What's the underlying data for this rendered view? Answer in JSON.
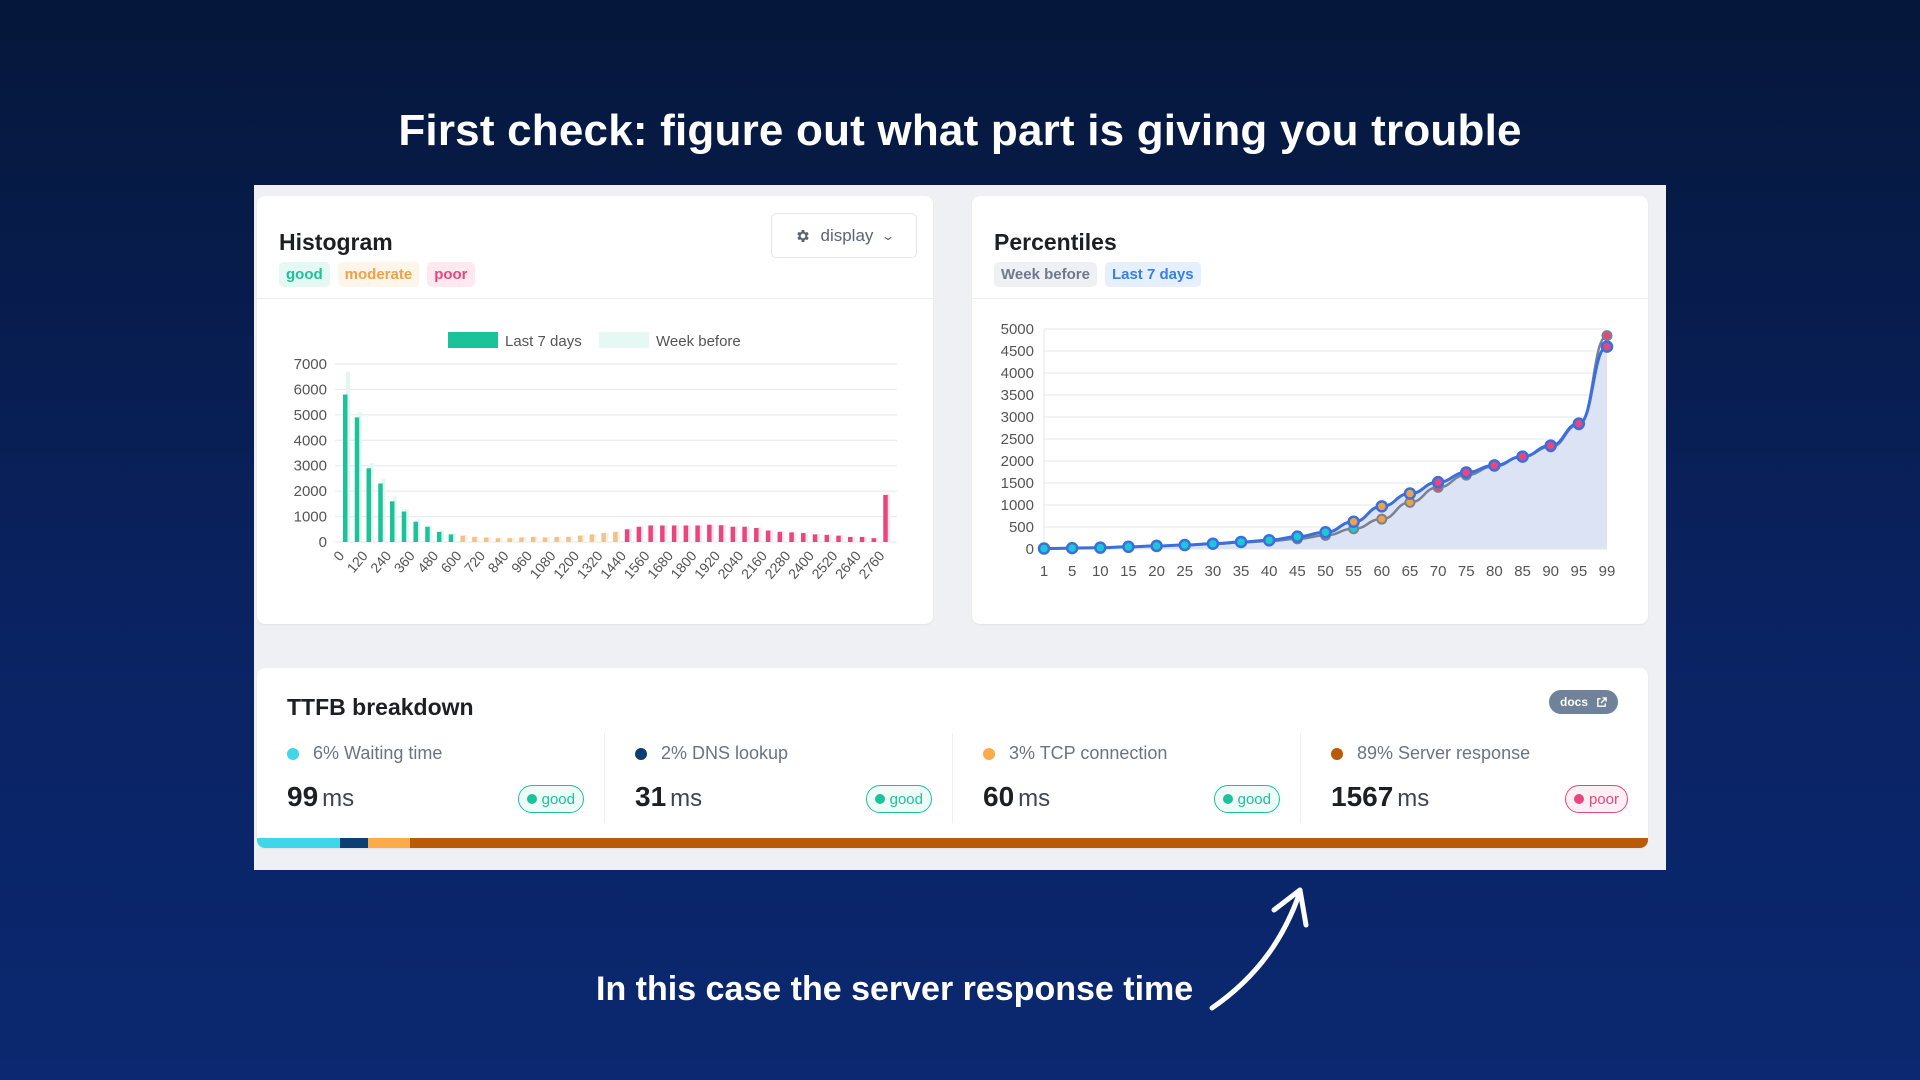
{
  "headline": "First check: figure out what part is giving you trouble",
  "caption": "In this case the server response time",
  "histogram": {
    "title": "Histogram",
    "pills": [
      "good",
      "moderate",
      "poor"
    ],
    "display_button": "display",
    "icons": {
      "display": "gear-icon",
      "dropdown": "chevron-down-icon"
    }
  },
  "percentiles": {
    "title": "Percentiles",
    "pills": [
      "Week before",
      "Last 7 days"
    ]
  },
  "ttfb": {
    "title": "TTFB breakdown",
    "docs_label": "docs",
    "docs_icon": "external-link-icon",
    "items": [
      {
        "label": "6% Waiting time",
        "value": "99",
        "unit": "ms",
        "status": "good",
        "color": "#3fd6ea",
        "share": 6
      },
      {
        "label": "2% DNS lookup",
        "value": "31",
        "unit": "ms",
        "status": "good",
        "color": "#0d3f73",
        "share": 2
      },
      {
        "label": "3% TCP connection",
        "value": "60",
        "unit": "ms",
        "status": "good",
        "color": "#fbab4a",
        "share": 3
      },
      {
        "label": "89% Server response",
        "value": "1567",
        "unit": "ms",
        "status": "poor",
        "color": "#b85a06",
        "share": 89
      }
    ]
  },
  "colors": {
    "good": "#1cc29a",
    "moderate": "#f3c28c",
    "poor": "#e8467c",
    "line_last7": "#3a6fe0",
    "line_weekbefore": "#7b8191"
  },
  "chart_data": [
    {
      "type": "bar",
      "title": "Histogram",
      "legend": [
        "Last 7 days",
        "Week before"
      ],
      "legend_position": "top",
      "x_tick_labels": [
        "0",
        "120",
        "240",
        "360",
        "480",
        "600",
        "720",
        "840",
        "960",
        "1080",
        "1200",
        "1320",
        "1440",
        "1560",
        "1680",
        "1800",
        "1920",
        "2040",
        "2160",
        "2280",
        "2400",
        "2520",
        "2640",
        "2760"
      ],
      "categories": [
        0,
        60,
        120,
        180,
        240,
        300,
        360,
        420,
        480,
        540,
        600,
        660,
        720,
        780,
        840,
        900,
        960,
        1020,
        1080,
        1140,
        1200,
        1260,
        1320,
        1380,
        1440,
        1500,
        1560,
        1620,
        1680,
        1740,
        1800,
        1860,
        1920,
        1980,
        2040,
        2100,
        2160,
        2220,
        2280,
        2340,
        2400,
        2460,
        2520,
        2580,
        2640,
        2700,
        2760
      ],
      "series": [
        {
          "name": "Last 7 days",
          "values": [
            5800,
            4900,
            2900,
            2300,
            1600,
            1200,
            800,
            600,
            400,
            300,
            250,
            200,
            180,
            150,
            150,
            180,
            200,
            180,
            200,
            200,
            250,
            300,
            350,
            400,
            500,
            600,
            650,
            650,
            650,
            650,
            650,
            680,
            660,
            600,
            600,
            550,
            450,
            400,
            380,
            350,
            300,
            280,
            250,
            200,
            200,
            150,
            1850
          ]
        },
        {
          "name": "Week before",
          "values": [
            6700,
            5100,
            3100,
            2500,
            1800,
            1300,
            900,
            650,
            450,
            350,
            280,
            220,
            200,
            170,
            170,
            200,
            220,
            200,
            220,
            220,
            280,
            320,
            370,
            420,
            530,
            620,
            660,
            660,
            660,
            660,
            660,
            690,
            670,
            620,
            620,
            570,
            470,
            420,
            400,
            370,
            320,
            300,
            270,
            220,
            220,
            170,
            1900
          ]
        }
      ],
      "ylim": [
        0,
        7000
      ],
      "yticks": [
        0,
        1000,
        2000,
        3000,
        4000,
        5000,
        6000,
        7000
      ],
      "thresholds": {
        "good_max": 540,
        "moderate_max": 1380
      },
      "grid": true
    },
    {
      "type": "line",
      "title": "Percentiles",
      "x": [
        1,
        5,
        10,
        15,
        20,
        25,
        30,
        35,
        40,
        45,
        50,
        55,
        60,
        65,
        70,
        75,
        80,
        85,
        90,
        95,
        99
      ],
      "series": [
        {
          "name": "Last 7 days",
          "values": [
            10,
            20,
            30,
            50,
            70,
            90,
            120,
            160,
            200,
            280,
            380,
            620,
            970,
            1260,
            1520,
            1740,
            1900,
            2100,
            2350,
            2850,
            4600
          ]
        },
        {
          "name": "Week before",
          "values": [
            10,
            20,
            30,
            50,
            70,
            90,
            110,
            150,
            180,
            230,
            310,
            460,
            680,
            1060,
            1400,
            1680,
            1880,
            2100,
            2320,
            2820,
            4850
          ]
        }
      ],
      "ylim": [
        0,
        5000
      ],
      "yticks": [
        0,
        500,
        1000,
        1500,
        2000,
        2500,
        3000,
        3500,
        4000,
        4500,
        5000
      ],
      "grid": true
    }
  ]
}
